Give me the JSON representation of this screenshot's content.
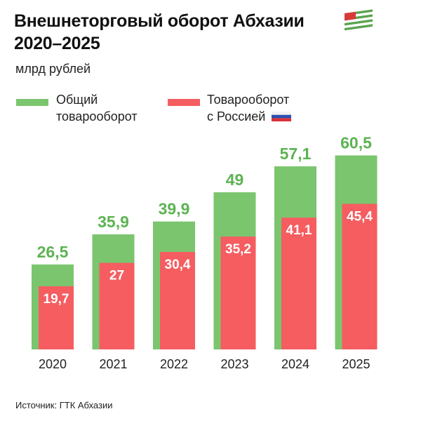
{
  "title_line1": "Внешнеторговый оборот Абхазии",
  "title_line2": "2020–2025",
  "flag_icon": "abkhazia-flag-icon",
  "unit": "млрд рублей",
  "source": "Источник: ГТК Абхазии",
  "colors": {
    "total": "#7bc56f",
    "russia": "#f55d60"
  },
  "chart_data": {
    "type": "bar",
    "categories": [
      "2020",
      "2021",
      "2022",
      "2023",
      "2024",
      "2025"
    ],
    "series": [
      {
        "name": "Общий товарооборот",
        "name_line1": "Общий",
        "name_line2": "товарооборот",
        "values": [
          26.5,
          35.9,
          39.9,
          49,
          57.1,
          60.5
        ],
        "labels": [
          "26,5",
          "35,9",
          "39,9",
          "49",
          "57,1",
          "60,5"
        ]
      },
      {
        "name": "Товарооборот с Россией",
        "name_line1": "Товарооборот",
        "name_line2": "с Россией",
        "values": [
          19.7,
          27,
          30.4,
          35.2,
          41.1,
          45.4
        ],
        "labels": [
          "19,7",
          "27",
          "30,4",
          "35,2",
          "41,1",
          "45,4"
        ]
      }
    ],
    "ylabel": "млрд рублей",
    "legend": "top-left",
    "grid": false,
    "overlapped": true
  }
}
